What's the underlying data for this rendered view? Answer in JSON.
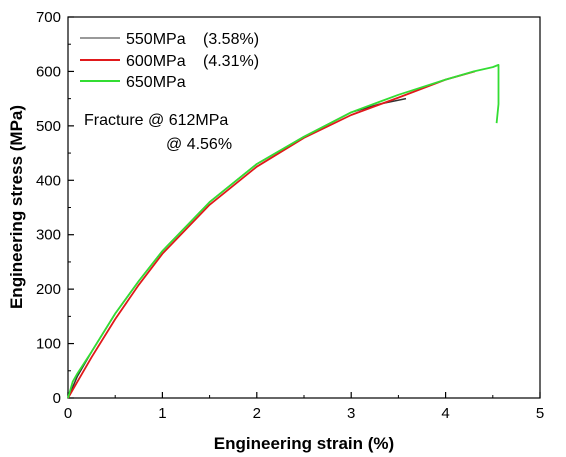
{
  "chart_data": {
    "type": "line",
    "xlabel": "Engineering strain (%)",
    "ylabel": "Engineering stress (MPa)",
    "xlim": [
      0,
      5
    ],
    "ylim": [
      0,
      700
    ],
    "xticks": [
      "0",
      "1",
      "2",
      "3",
      "4",
      "5"
    ],
    "yticks": [
      "0",
      "100",
      "200",
      "300",
      "400",
      "500",
      "600",
      "700"
    ],
    "grid": false,
    "legend_position": "top-left",
    "series": [
      {
        "name": "550MPa",
        "legend_note": "(3.58%)",
        "color": "#333333",
        "x": [
          0,
          0.1,
          0.25,
          0.5,
          0.75,
          1.0,
          1.5,
          2.0,
          2.5,
          3.0,
          3.3,
          3.58
        ],
        "y": [
          0,
          40,
          85,
          155,
          215,
          270,
          360,
          430,
          480,
          525,
          540,
          550
        ]
      },
      {
        "name": "600MPa",
        "legend_note": "(4.31%)",
        "color": "#e0191b",
        "x": [
          0,
          0.1,
          0.25,
          0.5,
          0.75,
          1.0,
          1.5,
          2.0,
          2.5,
          3.0,
          3.5,
          4.0,
          4.31
        ],
        "y": [
          0,
          30,
          75,
          145,
          208,
          265,
          355,
          425,
          478,
          520,
          552,
          585,
          600
        ]
      },
      {
        "name": "650MPa",
        "legend_note": "",
        "color": "#33dd33",
        "x": [
          0,
          0.05,
          0.1,
          0.25,
          0.5,
          0.75,
          1.0,
          1.5,
          2.0,
          2.5,
          3.0,
          3.5,
          4.0,
          4.3,
          4.5,
          4.56,
          4.56,
          4.54
        ],
        "y": [
          0,
          30,
          45,
          85,
          155,
          215,
          270,
          360,
          430,
          480,
          525,
          557,
          585,
          600,
          608,
          612,
          540,
          505
        ]
      }
    ],
    "annotations": [
      {
        "text": "Fracture @ 612MPa"
      },
      {
        "text": "@ 4.56%"
      }
    ]
  }
}
